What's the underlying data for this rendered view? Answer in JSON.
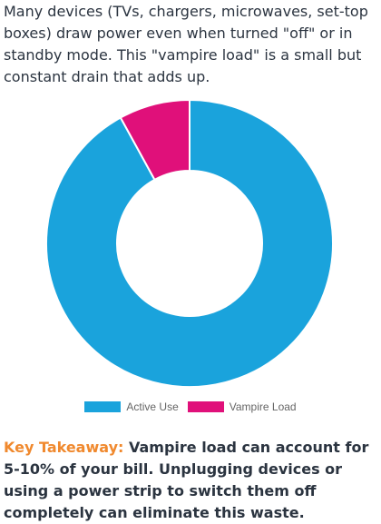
{
  "intro_text": "Many devices (TVs, chargers, microwaves, set-top boxes) draw power even when turned \"off\" or in standby mode. This \"vampire load\" is a small but constant drain that adds up.",
  "chart_data": {
    "type": "pie",
    "variant": "doughnut",
    "categories": [
      "Active Use",
      "Vampire Load"
    ],
    "values": [
      92,
      8
    ],
    "colors": [
      "#1aa3dc",
      "#e0107a"
    ],
    "legend_position": "bottom",
    "title": ""
  },
  "legend": {
    "active_label": "Active Use",
    "vampire_label": "Vampire Load"
  },
  "takeaway": {
    "label": "Key Takeaway:",
    "text": " Vampire load can account for 5-10% of your bill. Unplugging devices or using a power strip to switch them off completely can eliminate this waste."
  }
}
